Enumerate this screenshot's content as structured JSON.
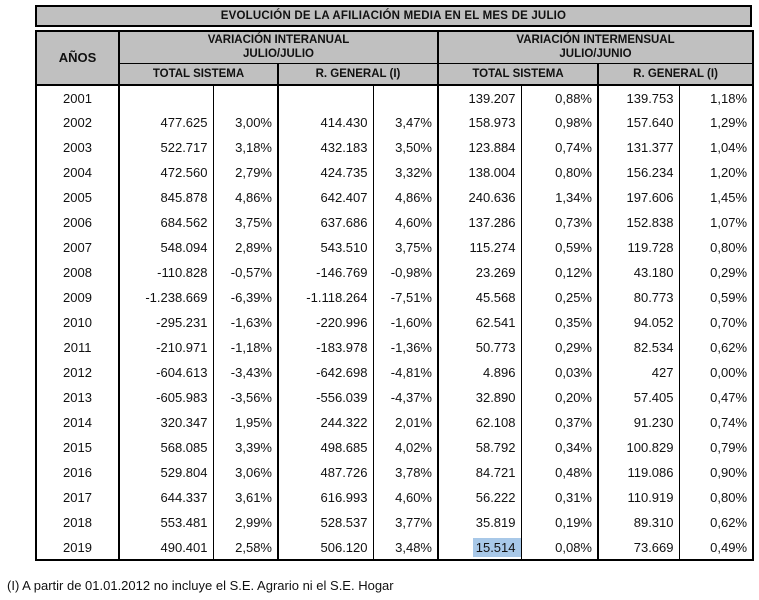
{
  "title": "EVOLUCIÓN DE LA AFILIACIÓN MEDIA EN EL MES DE JULIO",
  "colors": {
    "header_bg": "#c0c0c0",
    "border_color": "#000000",
    "highlight": "#a8c8e8"
  },
  "table": {
    "col_anos": "AÑOS",
    "groups": [
      {
        "label": "VARIACIÓN INTERANUAL",
        "sublabel": "JULIO/JULIO",
        "columns": [
          "TOTAL SISTEMA",
          "R. GENERAL (I)"
        ]
      },
      {
        "label": "VARIACIÓN INTERMENSUAL",
        "sublabel": "JULIO/JUNIO",
        "columns": [
          "TOTAL SISTEMA",
          "R. GENERAL (I)"
        ]
      }
    ],
    "rows": [
      {
        "year": "2001",
        "cells": [
          "",
          "",
          "",
          "",
          "139.207",
          "0,88%",
          "139.753",
          "1,18%"
        ]
      },
      {
        "year": "2002",
        "cells": [
          "477.625",
          "3,00%",
          "414.430",
          "3,47%",
          "158.973",
          "0,98%",
          "157.640",
          "1,29%"
        ]
      },
      {
        "year": "2003",
        "cells": [
          "522.717",
          "3,18%",
          "432.183",
          "3,50%",
          "123.884",
          "0,74%",
          "131.377",
          "1,04%"
        ]
      },
      {
        "year": "2004",
        "cells": [
          "472.560",
          "2,79%",
          "424.735",
          "3,32%",
          "138.004",
          "0,80%",
          "156.234",
          "1,20%"
        ]
      },
      {
        "year": "2005",
        "cells": [
          "845.878",
          "4,86%",
          "642.407",
          "4,86%",
          "240.636",
          "1,34%",
          "197.606",
          "1,45%"
        ]
      },
      {
        "year": "2006",
        "cells": [
          "684.562",
          "3,75%",
          "637.686",
          "4,60%",
          "137.286",
          "0,73%",
          "152.838",
          "1,07%"
        ]
      },
      {
        "year": "2007",
        "cells": [
          "548.094",
          "2,89%",
          "543.510",
          "3,75%",
          "115.274",
          "0,59%",
          "119.728",
          "0,80%"
        ]
      },
      {
        "year": "2008",
        "cells": [
          "-110.828",
          "-0,57%",
          "-146.769",
          "-0,98%",
          "23.269",
          "0,12%",
          "43.180",
          "0,29%"
        ]
      },
      {
        "year": "2009",
        "cells": [
          "-1.238.669",
          "-6,39%",
          "-1.118.264",
          "-7,51%",
          "45.568",
          "0,25%",
          "80.773",
          "0,59%"
        ]
      },
      {
        "year": "2010",
        "cells": [
          "-295.231",
          "-1,63%",
          "-220.996",
          "-1,60%",
          "62.541",
          "0,35%",
          "94.052",
          "0,70%"
        ]
      },
      {
        "year": "2011",
        "cells": [
          "-210.971",
          "-1,18%",
          "-183.978",
          "-1,36%",
          "50.773",
          "0,29%",
          "82.534",
          "0,62%"
        ]
      },
      {
        "year": "2012",
        "cells": [
          "-604.613",
          "-3,43%",
          "-642.698",
          "-4,81%",
          "4.896",
          "0,03%",
          "427",
          "0,00%"
        ]
      },
      {
        "year": "2013",
        "cells": [
          "-605.983",
          "-3,56%",
          "-556.039",
          "-4,37%",
          "32.890",
          "0,20%",
          "57.405",
          "0,47%"
        ]
      },
      {
        "year": "2014",
        "cells": [
          "320.347",
          "1,95%",
          "244.322",
          "2,01%",
          "62.108",
          "0,37%",
          "91.230",
          "0,74%"
        ]
      },
      {
        "year": "2015",
        "cells": [
          "568.085",
          "3,39%",
          "498.685",
          "4,02%",
          "58.792",
          "0,34%",
          "100.829",
          "0,79%"
        ]
      },
      {
        "year": "2016",
        "cells": [
          "529.804",
          "3,06%",
          "487.726",
          "3,78%",
          "84.721",
          "0,48%",
          "119.086",
          "0,90%"
        ]
      },
      {
        "year": "2017",
        "cells": [
          "644.337",
          "3,61%",
          "616.993",
          "4,60%",
          "56.222",
          "0,31%",
          "110.919",
          "0,80%"
        ]
      },
      {
        "year": "2018",
        "cells": [
          "553.481",
          "2,99%",
          "528.537",
          "3,77%",
          "35.819",
          "0,19%",
          "89.310",
          "0,62%"
        ]
      },
      {
        "year": "2019",
        "cells": [
          "490.401",
          "2,58%",
          "506.120",
          "3,48%",
          "15.514",
          "0,08%",
          "73.669",
          "0,49%"
        ]
      }
    ],
    "highlight": {
      "year": "2019",
      "cell_index": 4
    }
  },
  "footnote": "(I) A partir de 01.01.2012 no incluye el S.E. Agrario ni el S.E. Hogar"
}
